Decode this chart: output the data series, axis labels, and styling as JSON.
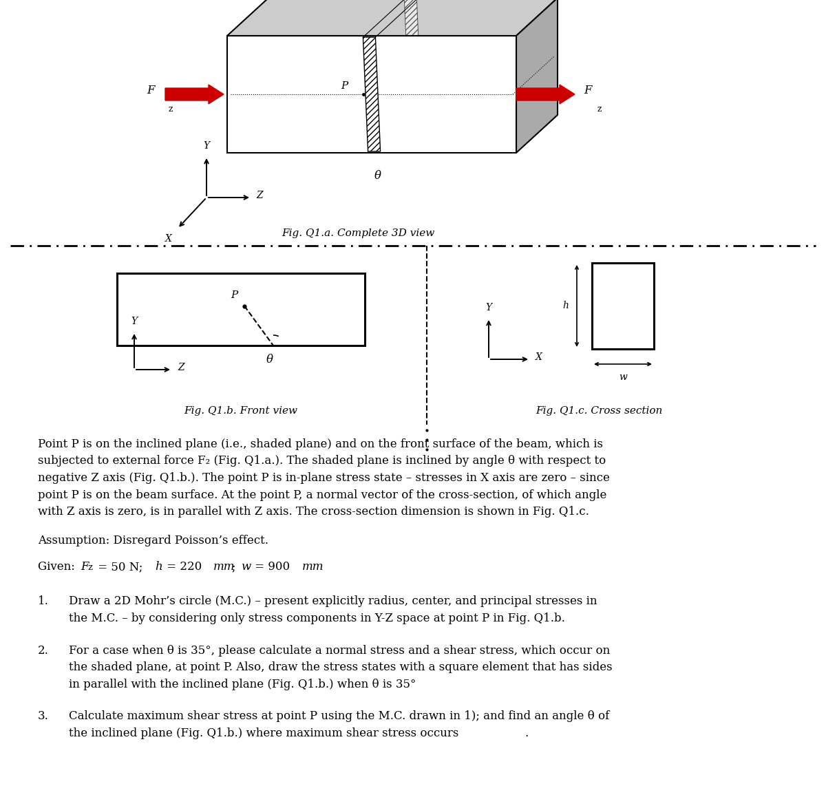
{
  "fig_caption_3d": "Fig. Q1.a. Complete 3D view",
  "fig_caption_front": "Fig. Q1.b. Front view",
  "fig_caption_cross": "Fig. Q1.c. Cross section",
  "label_Fz": "F",
  "label_Fz_sub": "z",
  "label_theta": "θ",
  "label_P": "P",
  "label_h": "h",
  "label_w": "w",
  "label_Y": "Y",
  "label_Z": "Z",
  "label_X": "X",
  "arrow_red": "#CC0000",
  "bg": "#ffffff",
  "paragraph1_line1": "Point P is on the inclined plane (i.e., shaded plane) and on the front surface of the beam, which is",
  "paragraph1_line2": "subjected to external force F",
  "paragraph1_line2b": "z",
  "paragraph1_line2c": " (Fig. Q1.a.). The shaded plane is inclined by angle θ with respect to",
  "paragraph1_line3": "negative Z axis (Fig. Q1.b.). The point P is in-plane stress state – stresses in X axis are zero – since",
  "paragraph1_line4": "point P is on the beam surface. At the point P, a normal vector of the cross-section, of which angle",
  "paragraph1_line5": "with Z axis is zero, is in parallel with Z axis. The cross-section dimension is shown in Fig. Q1.c.",
  "paragraph2": "Assumption: Disregard Poisson’s effect.",
  "given_pre": "Given: ",
  "given_Fz": "F",
  "given_Fz_sub": "z",
  "given_mid": " = 50 N; ",
  "given_h": "h",
  "given_hmid": " = 220 ",
  "given_mm1": "mm",
  "given_semi": "; ",
  "given_w": "w",
  "given_wmid": " = 900 ",
  "given_mm2": "mm",
  "item1_num": "1.",
  "item1_text1": "Draw a 2D Mohr’s circle (M.C.) – present explicitly radius, center, and principal stresses in",
  "item1_text2": "the M.C. – by considering only stress components in Y-Z space at point P in Fig. Q1.b.",
  "item2_num": "2.",
  "item2_text1": "For a case when θ is 35°, please calculate a normal stress and a shear stress, which occur on",
  "item2_text2": "the shaded plane, at point P. Also, draw the stress states with a square element that has sides",
  "item2_text3": "in parallel with the inclined plane (Fig. Q1.b.) when θ is 35°",
  "item3_num": "3.",
  "item3_text1": "Calculate maximum shear stress at point P using the M.C. drawn in 1); and find an angle θ of",
  "item3_text2": "the inclined plane (Fig. Q1.b.) where maximum shear stress occurs"
}
